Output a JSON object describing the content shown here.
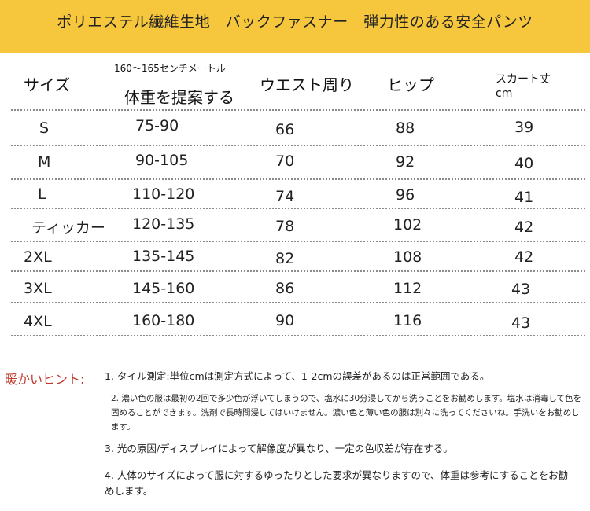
{
  "banner": {
    "text": "ポリエステル繊維生地　バックファスナー　弾力性のある安全パンツ",
    "color": "#f6c63c"
  },
  "table": {
    "headers": {
      "size": "サイズ",
      "weight_height": "160～165センチメートル",
      "weight": "体重を提案する",
      "waist": "ウエスト周り",
      "hip": "ヒップ",
      "skirt_length": "スカート丈",
      "skirt_unit": "cm"
    },
    "rows": [
      {
        "size": "S",
        "weight": "75-90",
        "waist": "66",
        "hip": "88",
        "length": "39"
      },
      {
        "size": "M",
        "weight": "90-105",
        "waist": "70",
        "hip": "92",
        "length": "40"
      },
      {
        "size": "L",
        "weight": "110-120",
        "waist": "74",
        "hip": "96",
        "length": "41"
      },
      {
        "size": "ティッカー",
        "weight": "120-135",
        "waist": "78",
        "hip": "102",
        "length": "42"
      },
      {
        "size": "2XL",
        "weight": "135-145",
        "waist": "82",
        "hip": "108",
        "length": "42"
      },
      {
        "size": "3XL",
        "weight": "145-160",
        "waist": "86",
        "hip": "112",
        "length": "43"
      },
      {
        "size": "4XL",
        "weight": "160-180",
        "waist": "90",
        "hip": "116",
        "length": "43"
      }
    ]
  },
  "notes": {
    "label": "暖かいヒント:",
    "label_color": "#c0392b",
    "items": [
      "1. タイル測定:単位cmは測定方式によって、1-2cmの誤差があるのは正常範囲である。",
      "2. 濃い色の服は最初の2回で多少色が浮いてしまうので、塩水に30分浸してから洗うことをお勧めします。塩水は消毒して色を固めることができます。洗剤で長時間浸してはいけません。濃い色と薄い色の服は別々に洗ってくださいね。手洗いをお勧めします。",
      "3. 光の原因/ディスプレイによって解像度が異なり、一定の色収差が存在する。",
      "4. 人体のサイズによって服に対するゆったりとした要求が異なりますので、体重は参考にすることをお勧めします。"
    ]
  }
}
